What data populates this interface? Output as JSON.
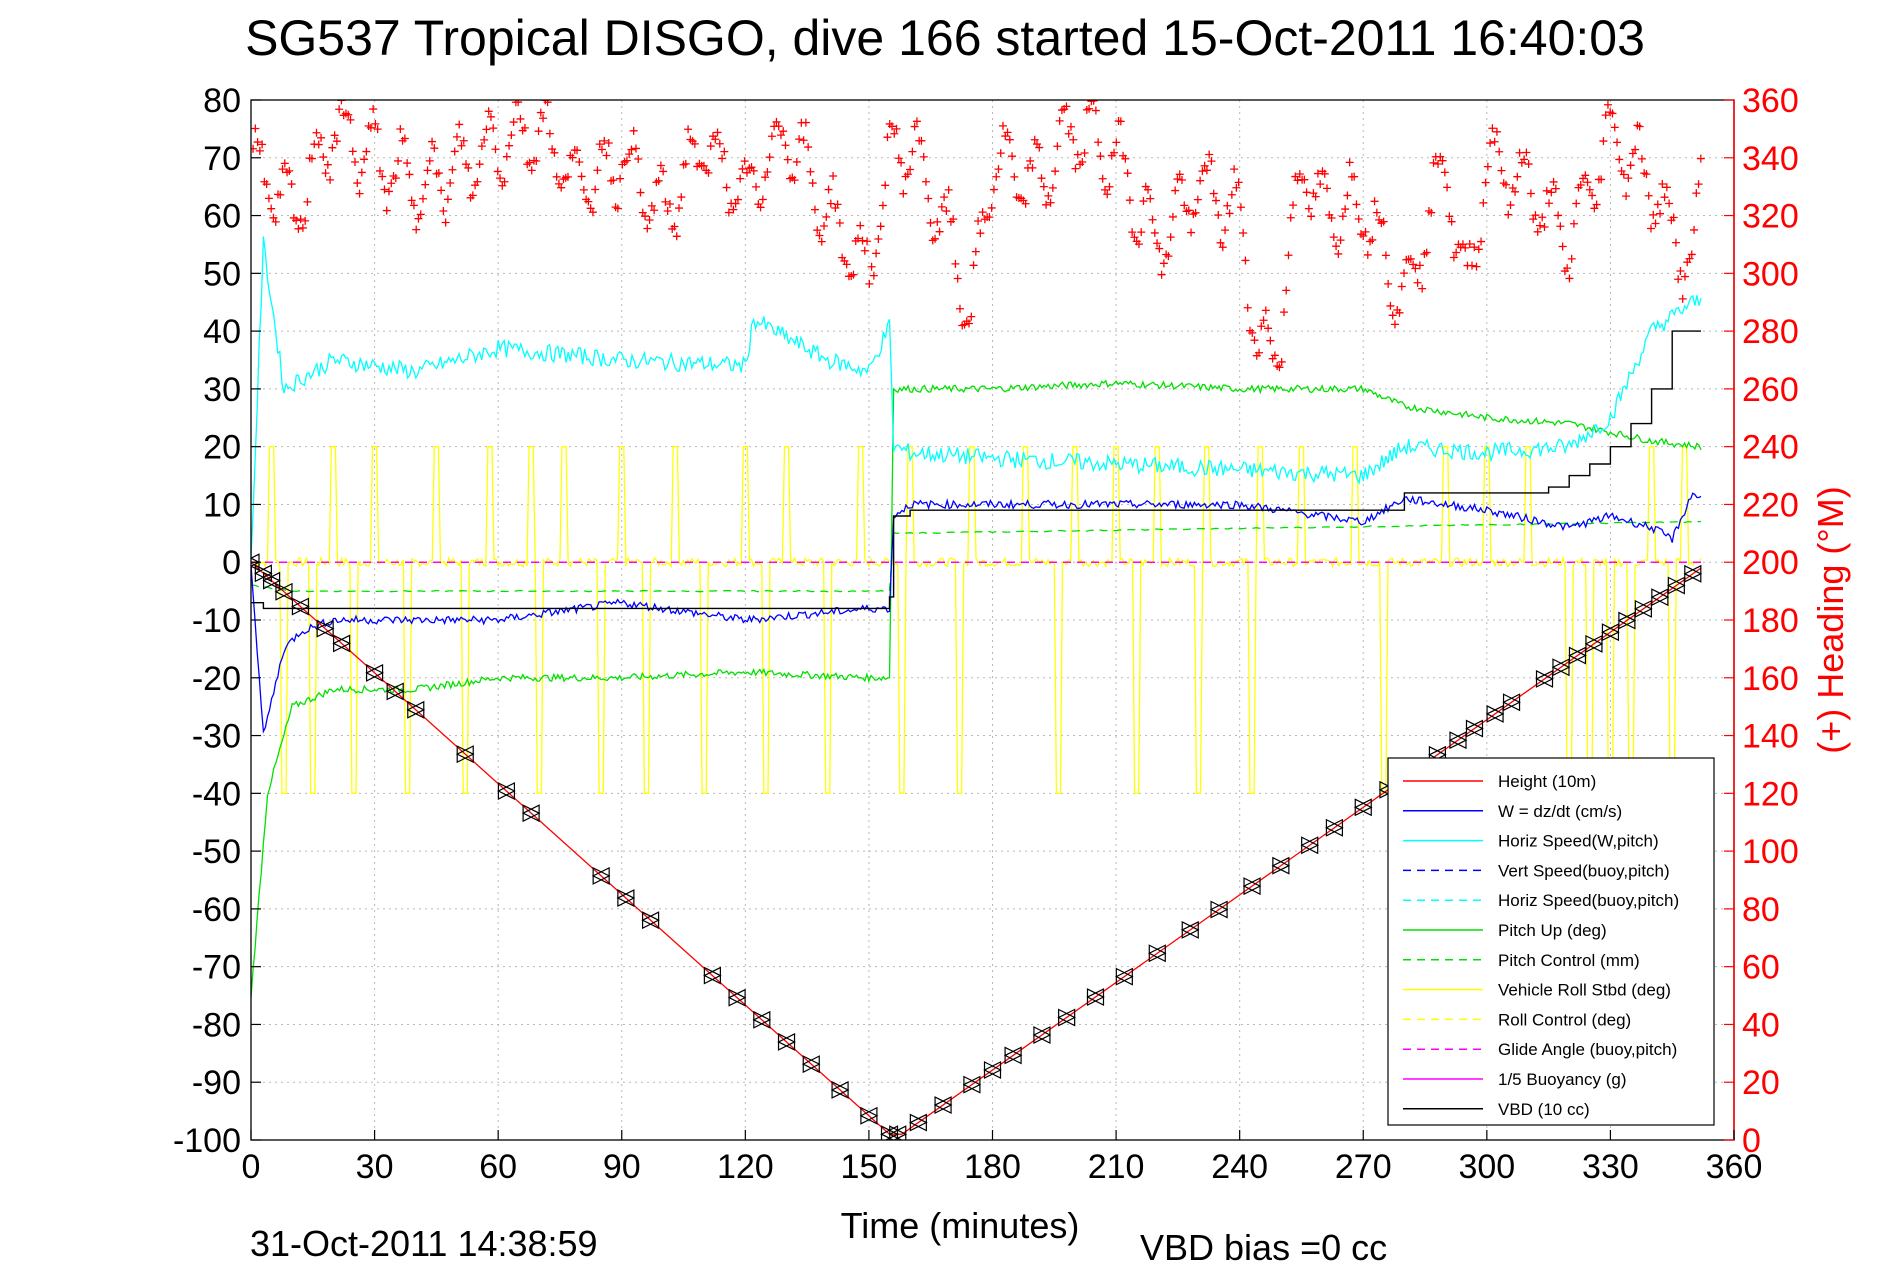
{
  "title": "SG537 Tropical DISGO, dive 166 started 15-Oct-2011 16:40:03",
  "footer": {
    "date": "31-Oct-2011 14:38:59",
    "vbd_bias": "VBD bias =0 cc"
  },
  "colors": {
    "height": "#ff0000",
    "w": "#0000ff",
    "horiz_speed": "#00ffff",
    "vert_speed_buoy": "#0000ff",
    "horiz_speed_buoy": "#00ffff",
    "pitch_up": "#00e000",
    "pitch_control": "#00e000",
    "roll": "#ffff00",
    "roll_control": "#ffff00",
    "glide_angle": "#ff00ff",
    "buoyancy": "#ff00ff",
    "vbd": "#000000",
    "heading": "#ff0000",
    "depth_marker": "#000000"
  },
  "chart_data": {
    "type": "line",
    "xlabel": "Time (minutes)",
    "ylabel_right": "(+) Heading (°M)",
    "xlim": [
      0,
      360
    ],
    "ylim_left": [
      -100,
      80
    ],
    "ylim_right": [
      0,
      360
    ],
    "x_ticks": [
      0,
      30,
      60,
      90,
      120,
      150,
      180,
      210,
      240,
      270,
      300,
      330,
      360
    ],
    "y_ticks_left": [
      80,
      70,
      60,
      50,
      40,
      30,
      20,
      10,
      0,
      -10,
      -20,
      -30,
      -40,
      -50,
      -60,
      -70,
      -80,
      -90,
      -100
    ],
    "y_ticks_right": [
      360,
      340,
      320,
      300,
      280,
      260,
      240,
      220,
      200,
      180,
      160,
      140,
      120,
      100,
      80,
      60,
      40,
      20,
      0
    ],
    "grid": true,
    "legend_position": "lower-right",
    "legend": [
      "Height (10m)",
      "W = dz/dt (cm/s)",
      "Horiz Speed(W,pitch)",
      "Vert Speed(buoy,pitch)",
      "Horiz Speed(buoy,pitch)",
      "Pitch Up (deg)",
      "Pitch Control (mm)",
      "Vehicle Roll Stbd (deg)",
      "Roll Control (deg)",
      "Glide Angle (buoy,pitch)",
      "1/5 Buoyancy (g)",
      "VBD (10 cc)"
    ],
    "series": [
      {
        "name": "Height (10m)",
        "x": [
          0,
          155,
          158,
          352
        ],
        "y": [
          0,
          -99,
          -99,
          -1
        ]
      },
      {
        "name": "W = dz/dt (cm/s)",
        "x": [
          0,
          3,
          8,
          12,
          20,
          40,
          60,
          90,
          120,
          150,
          155,
          156,
          160,
          180,
          210,
          240,
          270,
          280,
          300,
          320,
          330,
          340,
          345,
          350,
          352
        ],
        "y": [
          0,
          -30,
          -15,
          -12,
          -10,
          -10,
          -10,
          -7,
          -10,
          -8,
          -8,
          8,
          10,
          10,
          10,
          10,
          7,
          11,
          9,
          6,
          8,
          6,
          4,
          12,
          11
        ]
      },
      {
        "name": "Horiz Speed(W,pitch)",
        "x": [
          0,
          3,
          8,
          20,
          40,
          60,
          90,
          120,
          122,
          140,
          150,
          155,
          156,
          160,
          180,
          210,
          240,
          270,
          280,
          300,
          320,
          330,
          340,
          350,
          352
        ],
        "y": [
          0,
          55,
          30,
          35,
          33,
          37,
          35,
          34,
          42,
          35,
          33,
          41,
          20,
          19,
          18,
          17,
          16,
          15,
          20,
          19,
          20,
          25,
          40,
          45,
          45
        ]
      },
      {
        "name": "Pitch Up (deg)",
        "x": [
          0,
          4,
          10,
          20,
          40,
          60,
          90,
          120,
          150,
          155,
          156,
          160,
          180,
          210,
          240,
          270,
          280,
          300,
          320,
          340,
          352
        ],
        "y": [
          -75,
          -40,
          -25,
          -22,
          -22,
          -20,
          -20,
          -19,
          -20,
          -20,
          30,
          30,
          30,
          31,
          30,
          30,
          27,
          25,
          24,
          21,
          20
        ]
      },
      {
        "name": "Pitch Control (mm)",
        "x": [
          0,
          10,
          155,
          156,
          352
        ],
        "y": [
          -4,
          -5,
          -5,
          5,
          7
        ]
      },
      {
        "name": "Roll Control (deg)",
        "x": [
          0,
          155,
          156,
          352
        ],
        "y": [
          0,
          0,
          0,
          0
        ]
      },
      {
        "name": "Glide Angle (buoy,pitch)",
        "x": [
          0,
          352
        ],
        "y": [
          0,
          0
        ]
      },
      {
        "name": "VBD (10 cc)",
        "x": [
          0,
          3,
          155,
          156,
          160,
          280,
          300,
          315,
          320,
          325,
          330,
          335,
          340,
          345,
          352
        ],
        "y": [
          -7,
          -8,
          -6,
          8,
          9,
          12,
          12,
          13,
          15,
          17,
          20,
          24,
          30,
          40,
          40
        ]
      },
      {
        "name": "(+) Heading (°M)",
        "x": [
          0,
          5,
          10,
          20,
          30,
          40,
          50,
          60,
          70,
          80,
          90,
          100,
          110,
          120,
          130,
          140,
          150,
          155,
          160,
          170,
          175,
          180,
          190,
          200,
          210,
          220,
          230,
          240,
          245,
          250,
          255,
          260,
          270,
          280,
          290,
          295,
          300,
          310,
          320,
          330,
          340,
          350,
          352
        ],
        "y": [
          340,
          330,
          320,
          350,
          340,
          330,
          335,
          345,
          350,
          330,
          340,
          320,
          345,
          325,
          350,
          320,
          300,
          340,
          345,
          310,
          285,
          340,
          330,
          350,
          340,
          310,
          330,
          320,
          270,
          280,
          340,
          320,
          325,
          290,
          340,
          290,
          340,
          330,
          310,
          350,
          330,
          300,
          330
        ]
      }
    ]
  }
}
